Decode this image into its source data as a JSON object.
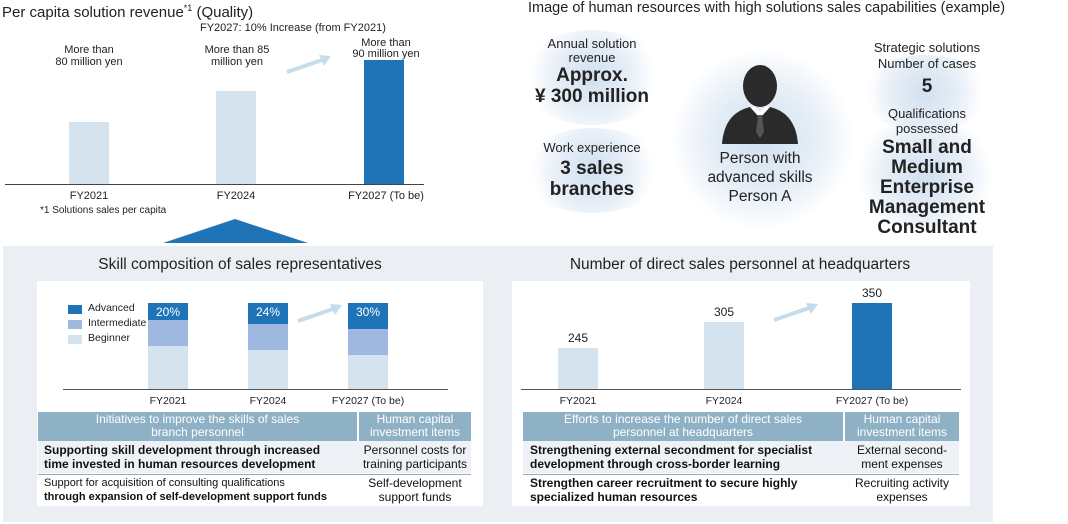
{
  "revenue_chart": {
    "title": "Per capita solution revenue",
    "title_sup": "*1",
    "title_suffix": " (Quality)",
    "increase_note": "FY2027: 10% Increase (from FY2021)",
    "footnote": "*1 Solutions sales per capita",
    "bar_labels": [
      [
        "More than",
        "80 million yen"
      ],
      [
        "More than 85",
        "million yen"
      ],
      [
        "More than",
        "90 million yen"
      ]
    ]
  },
  "chart_data": [
    {
      "type": "bar",
      "title": "Per capita solution revenue (Quality)",
      "categories": [
        "FY2021",
        "FY2024",
        "FY2027 (To be)"
      ],
      "values": [
        80,
        85,
        90
      ],
      "ylabel": "million yen",
      "colors": [
        "#d5e3ee",
        "#d5e3ee",
        "#1f73b7"
      ]
    },
    {
      "type": "bar",
      "title": "Skill composition of sales representatives",
      "categories": [
        "FY2021",
        "FY2024",
        "FY2027 (To be)"
      ],
      "series": [
        {
          "name": "Advanced",
          "values": [
            20,
            24,
            30
          ],
          "color": "#1f73b7"
        },
        {
          "name": "Intermediate",
          "values": [
            30,
            31,
            30
          ],
          "color": "#9fb8e0"
        },
        {
          "name": "Beginner",
          "values": [
            50,
            45,
            40
          ],
          "color": "#d5e3ee"
        }
      ],
      "stacked": true,
      "ylim": [
        0,
        100
      ]
    },
    {
      "type": "bar",
      "title": "Number of direct sales personnel at headquarters",
      "categories": [
        "FY2021",
        "FY2024",
        "FY2027 (To be)"
      ],
      "values": [
        245,
        305,
        350
      ],
      "colors": [
        "#d5e3ee",
        "#d5e3ee",
        "#1f73b7"
      ]
    }
  ],
  "hr": {
    "title": "Image of human resources with high solutions sales capabilities (example)",
    "annual_label": [
      "Annual solution",
      "revenue"
    ],
    "annual_value": [
      "Approx.",
      "¥ 300 million"
    ],
    "work_label": "Work experience",
    "work_value": [
      "3 sales",
      "branches"
    ],
    "person": [
      "Person with",
      "advanced skills",
      "Person A"
    ],
    "strategic_label": [
      "Strategic solutions",
      "Number of cases"
    ],
    "strategic_value": "5",
    "qual_label": [
      "Qualifications",
      "possessed"
    ],
    "qual_value": [
      "Small and",
      "Medium",
      "Enterprise",
      "Management",
      "Consultant"
    ]
  },
  "skill": {
    "title": "Skill composition of sales representatives",
    "legend": [
      "Advanced",
      "Intermediate",
      "Beginner"
    ],
    "table_head": [
      "Initiatives to improve the skills of sales",
      "branch personnel"
    ],
    "table_head2": [
      "Human capital",
      "investment items"
    ],
    "rows": [
      {
        "a": [
          "Supporting skill development through increased",
          "time invested in human resources development"
        ],
        "b": [
          "Personnel costs for",
          "training participants"
        ]
      },
      {
        "a": [
          "Support for acquisition of consulting qualifications",
          "through expansion of self-development support funds"
        ],
        "b": [
          "Self-development",
          "support funds"
        ]
      }
    ]
  },
  "direct": {
    "title": "Number of direct sales personnel at headquarters",
    "table_head": [
      "Efforts to increase the number of direct sales",
      "personnel at headquarters"
    ],
    "table_head2": [
      "Human capital",
      "investment items"
    ],
    "rows": [
      {
        "a": [
          "Strengthening external secondment for specialist",
          "development through cross-border learning"
        ],
        "b": [
          "External second-",
          "ment expenses"
        ]
      },
      {
        "a": [
          "Strengthen career recruitment to secure highly",
          "specialized human resources"
        ],
        "b": [
          "Recruiting activity",
          "expenses"
        ]
      }
    ]
  }
}
